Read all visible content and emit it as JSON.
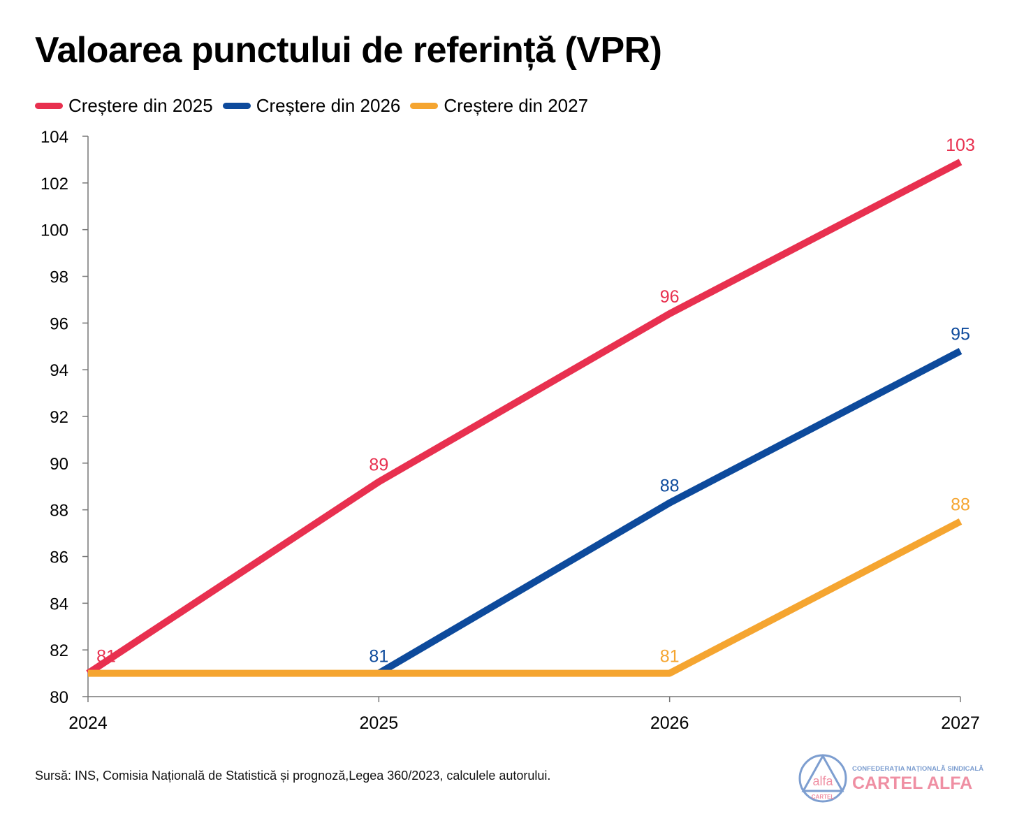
{
  "chart_data": {
    "type": "line",
    "title": "Valoarea punctului de referință (VPR)",
    "xlabel": "",
    "ylabel": "",
    "x": [
      2024,
      2025,
      2026,
      2027
    ],
    "x_tick_labels": [
      "2024",
      "2025",
      "2026",
      "2027"
    ],
    "ylim": [
      80,
      104
    ],
    "y_ticks": [
      80,
      82,
      84,
      86,
      88,
      90,
      92,
      94,
      96,
      98,
      100,
      102,
      104
    ],
    "grid": false,
    "legend_position": "top-left",
    "series": [
      {
        "name": "Creștere din 2025",
        "color": "#E8304F",
        "values": [
          81,
          89.2,
          96.4,
          102.9
        ],
        "labels": [
          "81",
          "89",
          "96",
          "103"
        ]
      },
      {
        "name": "Creștere din 2026",
        "color": "#0D4A9C",
        "values": [
          null,
          81,
          88.3,
          94.8
        ],
        "labels": [
          null,
          "81",
          "88",
          "95"
        ]
      },
      {
        "name": "Creștere din 2027",
        "color": "#F5A530",
        "values": [
          81,
          81,
          81,
          87.5
        ],
        "labels": [
          null,
          null,
          "81",
          "88"
        ]
      }
    ]
  },
  "source": "Sursă: INS, Comisia Națională de Statistică și prognoză,Legea 360/2023, calculele autorului.",
  "logo": {
    "emblem_top": "alfa",
    "emblem_bottom": "CARTEL",
    "subtitle": "CONFEDERAȚIA NAȚIONALĂ SINDICALĂ",
    "name": "CARTEL ALFA"
  }
}
